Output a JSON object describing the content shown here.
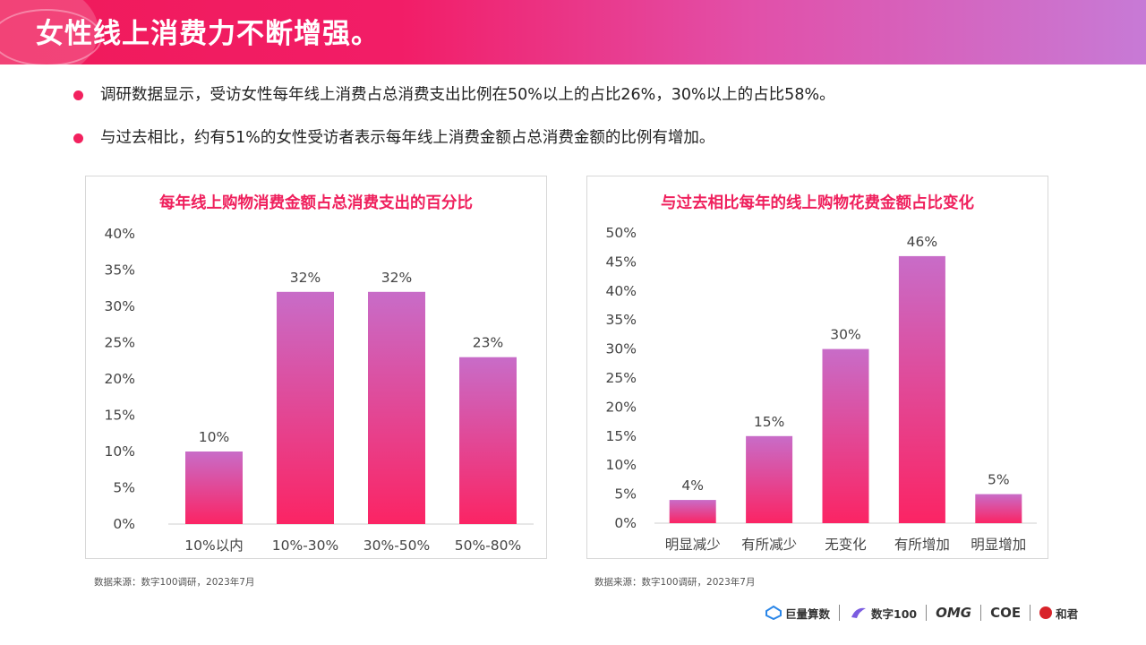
{
  "header": {
    "title": "女性线上消费力不断增强。"
  },
  "bullets": [
    "调研数据显示，受访女性每年线上消费占总消费支出比例在50%以上的占比26%，30%以上的占比58%。",
    "与过去相比，约有51%的女性受访者表示每年线上消费金额占总消费金额的比例有增加。"
  ],
  "chart_data": [
    {
      "type": "bar",
      "title": "每年线上购物消费金额占总消费支出的百分比",
      "categories": [
        "10%以内",
        "10%-30%",
        "30%-50%",
        "50%-80%"
      ],
      "values": [
        10,
        32,
        32,
        23
      ],
      "value_labels": [
        "10%",
        "32%",
        "32%",
        "23%"
      ],
      "yticks": [
        "0%",
        "5%",
        "10%",
        "15%",
        "20%",
        "25%",
        "30%",
        "35%",
        "40%"
      ],
      "ylim": [
        0,
        40
      ],
      "grid": false,
      "colors": {
        "top": "#c86cc8",
        "bottom": "#fb2464"
      }
    },
    {
      "type": "bar",
      "title": "与过去相比每年的线上购物花费金额占比变化",
      "categories": [
        "明显减少",
        "有所减少",
        "无变化",
        "有所增加",
        "明显增加"
      ],
      "values": [
        4,
        15,
        30,
        46,
        5
      ],
      "value_labels": [
        "4%",
        "15%",
        "30%",
        "46%",
        "5%"
      ],
      "yticks": [
        "0%",
        "5%",
        "10%",
        "15%",
        "20%",
        "25%",
        "30%",
        "35%",
        "40%",
        "45%",
        "50%"
      ],
      "ylim": [
        0,
        50
      ],
      "grid": false,
      "colors": {
        "top": "#c86cc8",
        "bottom": "#fb2464"
      }
    }
  ],
  "sources": [
    "数据来源：数字100调研，2023年7月",
    "数据来源：数字100调研，2023年7月"
  ],
  "footer_logos": [
    "巨量算数",
    "数字100",
    "OMG",
    "COE",
    "和君"
  ]
}
